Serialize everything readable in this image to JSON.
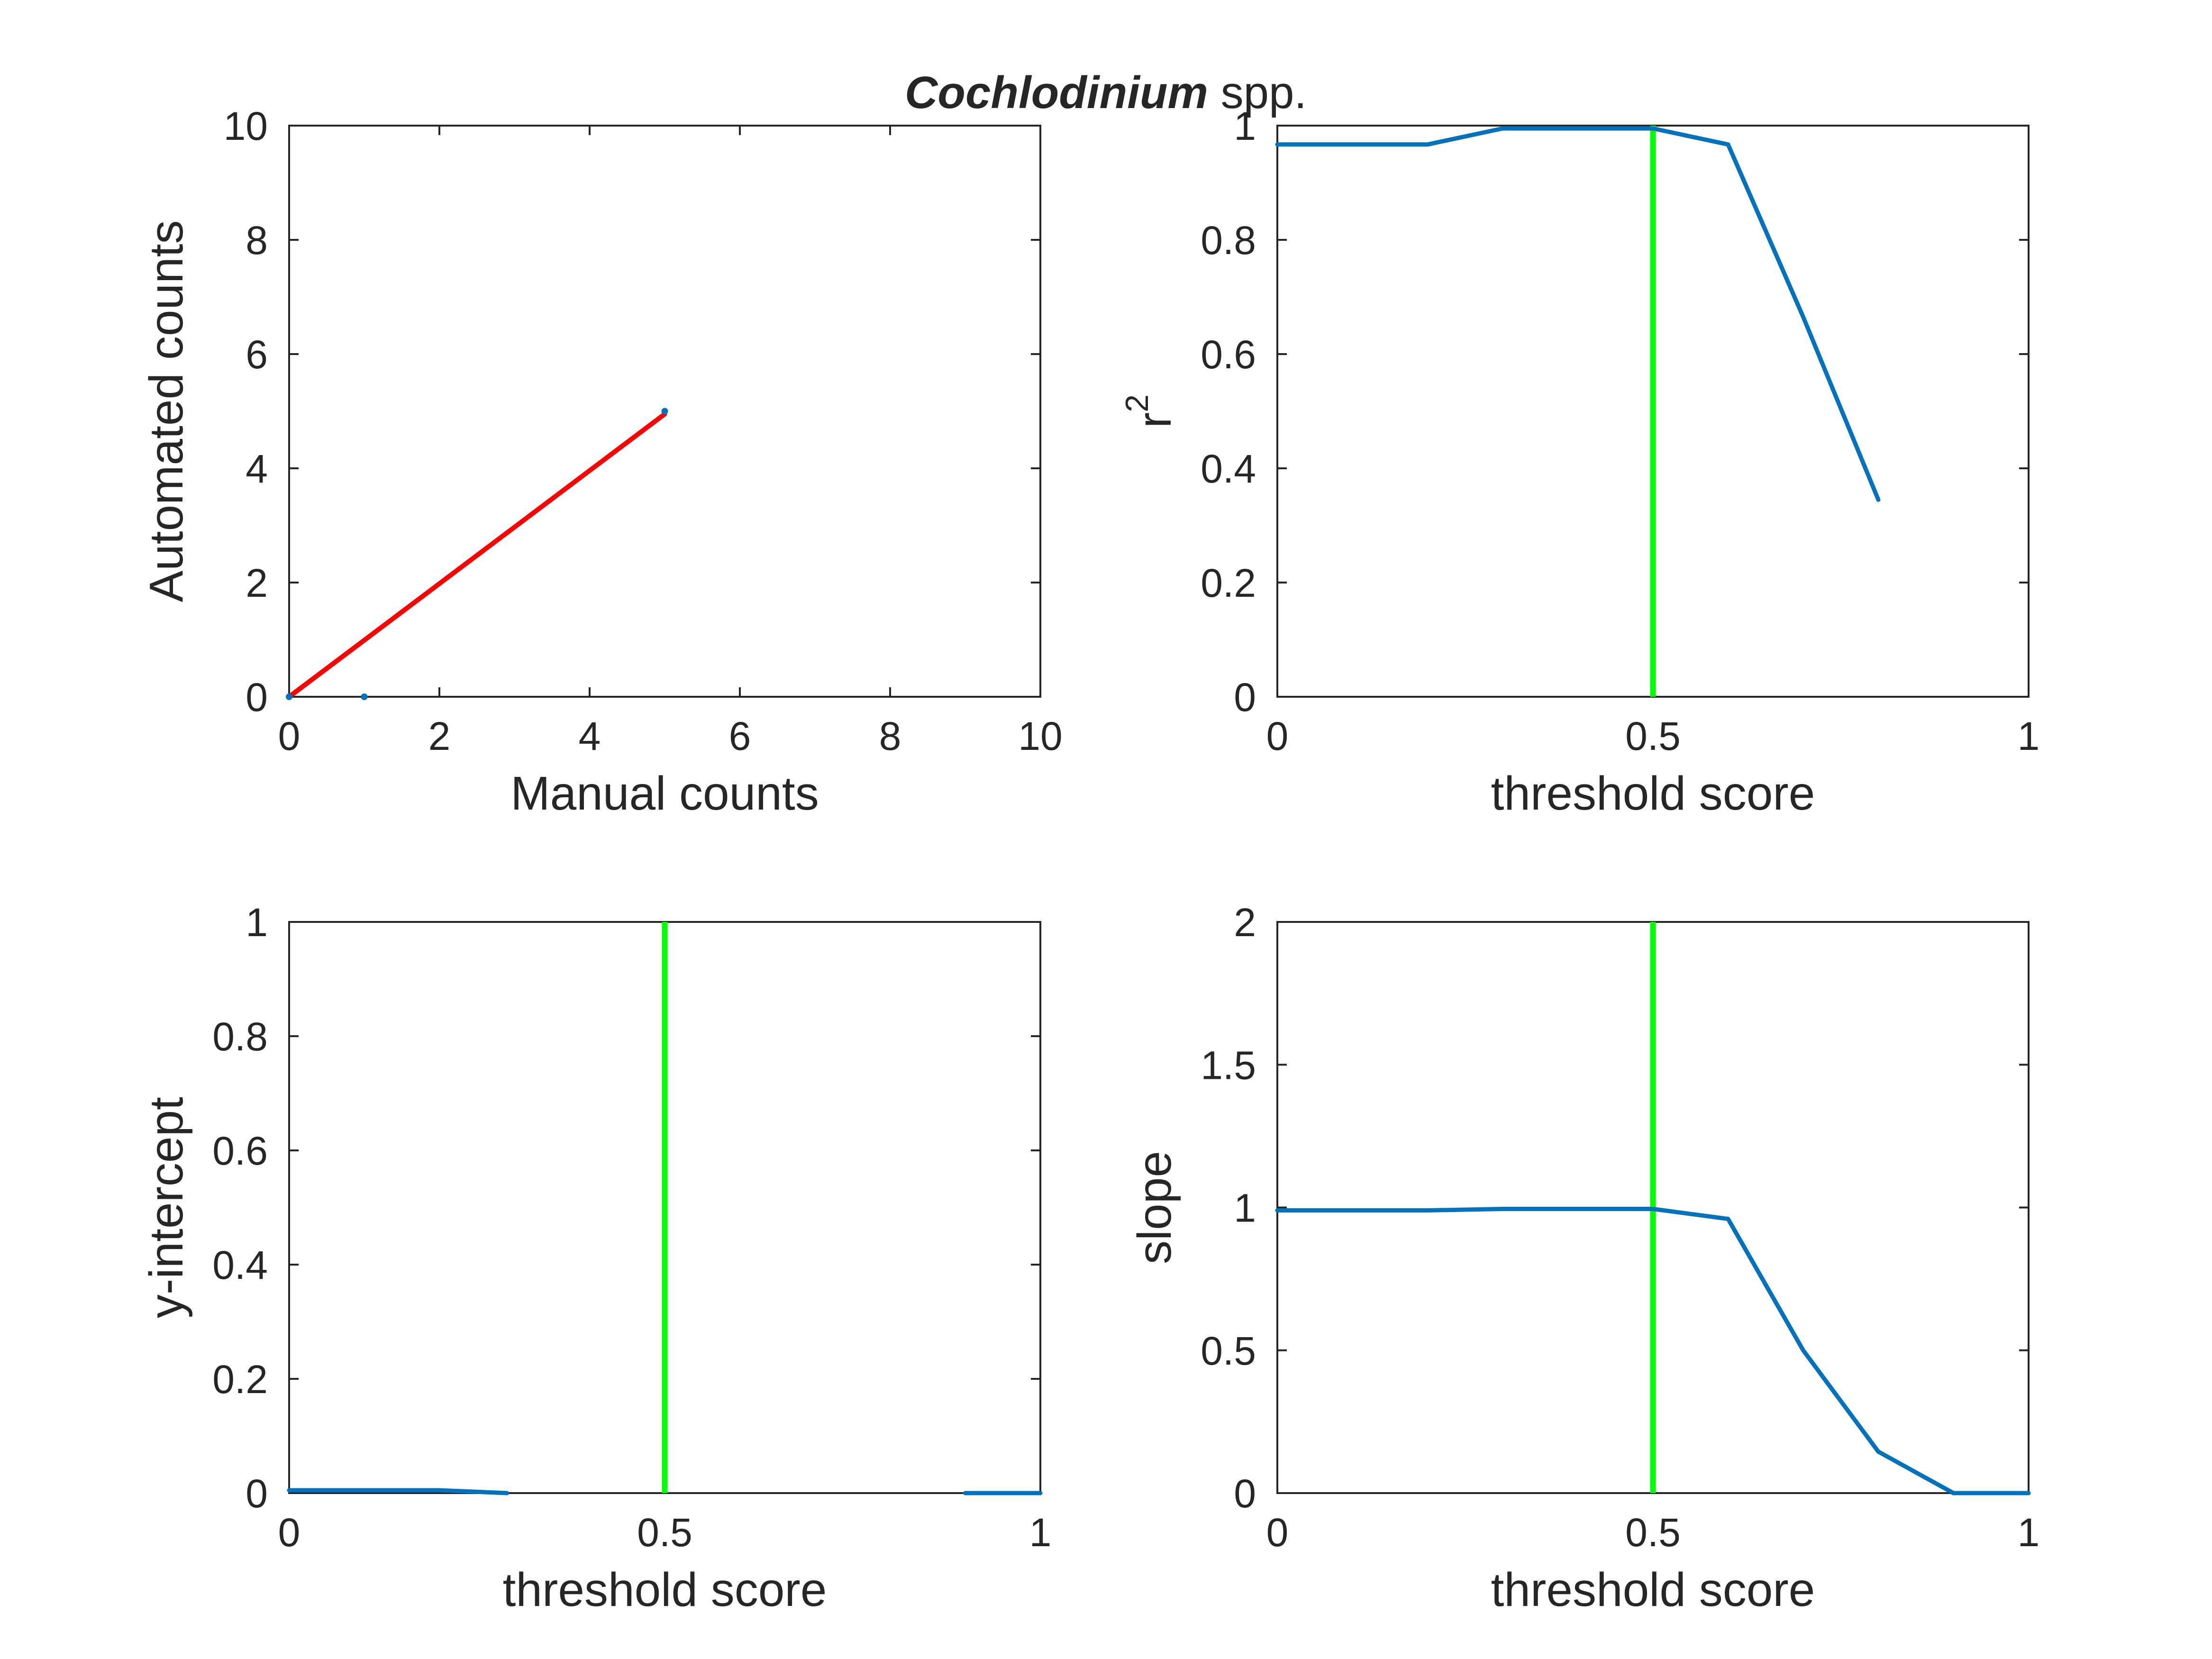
{
  "figure": {
    "title_emphasis": "Cochlodinium",
    "title_rest": " spp."
  },
  "chart_data": [
    {
      "id": "counts",
      "type": "scatter",
      "xlabel": "Manual counts",
      "ylabel": "Automated counts",
      "xlim": [
        0,
        10
      ],
      "ylim": [
        0,
        10
      ],
      "xticks": [
        0,
        2,
        4,
        6,
        8,
        10
      ],
      "yticks": [
        0,
        2,
        4,
        6,
        8,
        10
      ],
      "xtick_labels": [
        "0",
        "2",
        "4",
        "6",
        "8",
        "10"
      ],
      "ytick_labels": [
        "0",
        "2",
        "4",
        "6",
        "8",
        "10"
      ],
      "grid": false,
      "points": [
        [
          0,
          0
        ],
        [
          1,
          0
        ],
        [
          5,
          5
        ]
      ],
      "points_color": "#0072BD",
      "fit_line": {
        "x": [
          0,
          5
        ],
        "y": [
          0,
          4.95
        ],
        "color": "#FF0000"
      }
    },
    {
      "id": "r2",
      "type": "line",
      "xlabel": "threshold score",
      "ylabel": "r",
      "ylabel_superscript": "2",
      "xlim": [
        0,
        1
      ],
      "ylim": [
        0,
        1
      ],
      "xticks": [
        0,
        0.5,
        1
      ],
      "yticks": [
        0,
        0.2,
        0.4,
        0.6,
        0.8,
        1
      ],
      "xtick_labels": [
        "0",
        "0.5",
        "1"
      ],
      "ytick_labels": [
        "0",
        "0.2",
        "0.4",
        "0.6",
        "0.8",
        "1"
      ],
      "grid": false,
      "series": [
        {
          "x": [
            0,
            0.1,
            0.2,
            0.3,
            0.4,
            0.5,
            0.6,
            0.7,
            0.8
          ],
          "y": [
            0.967,
            0.967,
            0.967,
            0.995,
            0.995,
            0.995,
            0.967,
            0.665,
            0.345
          ],
          "color": "#0072BD"
        }
      ],
      "threshold": {
        "x": 0.5,
        "color": "#00FF00"
      }
    },
    {
      "id": "intercept",
      "type": "line",
      "xlabel": "threshold score",
      "ylabel": "y-intercept",
      "xlim": [
        0,
        1
      ],
      "ylim": [
        0,
        1
      ],
      "xticks": [
        0,
        0.5,
        1
      ],
      "yticks": [
        0,
        0.2,
        0.4,
        0.6,
        0.8,
        1
      ],
      "xtick_labels": [
        "0",
        "0.5",
        "1"
      ],
      "ytick_labels": [
        "0",
        "0.2",
        "0.4",
        "0.6",
        "0.8",
        "1"
      ],
      "grid": false,
      "series": [
        {
          "x": [
            0,
            0.1,
            0.2,
            0.29
          ],
          "y": [
            0.005,
            0.005,
            0.005,
            0
          ],
          "color": "#0072BD"
        },
        {
          "x": [
            0.9,
            1.0
          ],
          "y": [
            0,
            0
          ],
          "color": "#0072BD"
        }
      ],
      "threshold": {
        "x": 0.5,
        "color": "#00FF00"
      }
    },
    {
      "id": "slope",
      "type": "line",
      "xlabel": "threshold score",
      "ylabel": "slope",
      "xlim": [
        0,
        1
      ],
      "ylim": [
        0,
        2
      ],
      "xticks": [
        0,
        0.5,
        1
      ],
      "yticks": [
        0,
        0.5,
        1,
        1.5,
        2
      ],
      "xtick_labels": [
        "0",
        "0.5",
        "1"
      ],
      "ytick_labels": [
        "0",
        "0.5",
        "1",
        "1.5",
        "2"
      ],
      "grid": false,
      "series": [
        {
          "x": [
            0,
            0.1,
            0.2,
            0.3,
            0.4,
            0.5,
            0.6,
            0.7,
            0.8,
            0.9,
            1.0
          ],
          "y": [
            0.99,
            0.99,
            0.99,
            0.995,
            0.995,
            0.995,
            0.96,
            0.5,
            0.145,
            0,
            0
          ],
          "color": "#0072BD"
        }
      ],
      "threshold": {
        "x": 0.5,
        "color": "#00FF00"
      }
    }
  ]
}
